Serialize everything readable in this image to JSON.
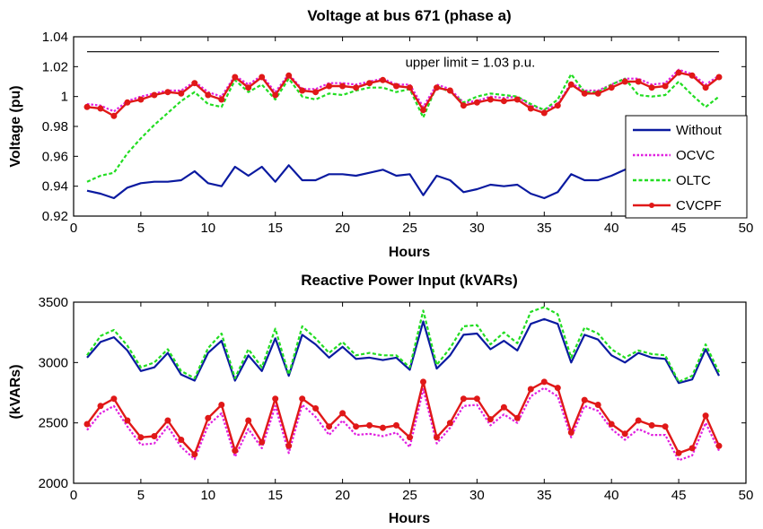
{
  "chart_data": [
    {
      "type": "line",
      "title": "Voltage at bus 671 (phase a)",
      "xlabel": "Hours",
      "ylabel": "Voltage (pu)",
      "xlim": [
        0,
        50
      ],
      "ylim": [
        0.92,
        1.04
      ],
      "xticks": [
        "0",
        "5",
        "10",
        "15",
        "20",
        "25",
        "30",
        "35",
        "40",
        "45",
        "50"
      ],
      "yticks": [
        "0.92",
        "0.94",
        "0.96",
        "0.98",
        "1",
        "1.02",
        "1.04"
      ],
      "grid": false,
      "legend": "bottom-right",
      "x": [
        1,
        2,
        3,
        4,
        5,
        6,
        7,
        8,
        9,
        10,
        11,
        12,
        13,
        14,
        15,
        16,
        17,
        18,
        19,
        20,
        21,
        22,
        23,
        24,
        25,
        26,
        27,
        28,
        29,
        30,
        31,
        32,
        33,
        34,
        35,
        36,
        37,
        38,
        39,
        40,
        41,
        42,
        43,
        44,
        45,
        46,
        47,
        48
      ],
      "series": [
        {
          "name": "Without",
          "color": "#0a1aa0",
          "style": "solid",
          "values": [
            0.937,
            0.935,
            0.932,
            0.939,
            0.942,
            0.943,
            0.943,
            0.944,
            0.95,
            0.942,
            0.94,
            0.953,
            0.947,
            0.953,
            0.943,
            0.954,
            0.944,
            0.944,
            0.948,
            0.948,
            0.947,
            0.949,
            0.951,
            0.947,
            0.948,
            0.934,
            0.947,
            0.944,
            0.936,
            0.938,
            0.941,
            0.94,
            0.941,
            0.935,
            0.932,
            0.936,
            0.948,
            0.944,
            0.944,
            0.947,
            0.951,
            0.953,
            0.953,
            0.954,
            0.958,
            0.958,
            0.956,
            0.96
          ]
        },
        {
          "name": "OCVC",
          "color": "#e020e0",
          "style": "dotted",
          "values": [
            0.995,
            0.994,
            0.99,
            0.997,
            1.0,
            1.002,
            1.004,
            1.004,
            1.01,
            1.003,
            1.0,
            1.014,
            1.008,
            1.014,
            1.003,
            1.015,
            1.005,
            1.005,
            1.009,
            1.009,
            1.008,
            1.01,
            1.012,
            1.008,
            1.008,
            0.993,
            1.008,
            1.005,
            0.996,
            0.997,
            1.0,
            0.999,
            1.0,
            0.994,
            0.991,
            0.995,
            1.009,
            1.004,
            1.004,
            1.008,
            1.012,
            1.012,
            1.008,
            1.009,
            1.018,
            1.015,
            1.008,
            1.014
          ]
        },
        {
          "name": "OLTC",
          "color": "#22dd22",
          "style": "dashed",
          "values": [
            0.943,
            0.947,
            0.949,
            0.962,
            0.972,
            0.981,
            0.989,
            0.997,
            1.003,
            0.995,
            0.993,
            1.011,
            1.003,
            1.008,
            0.998,
            1.012,
            1.0,
            0.998,
            1.002,
            1.001,
            1.004,
            1.006,
            1.006,
            1.003,
            1.005,
            0.986,
            1.007,
            1.003,
            0.996,
            1.0,
            1.002,
            1.001,
            1.0,
            0.995,
            0.991,
            0.998,
            1.015,
            1.003,
            1.003,
            1.008,
            1.012,
            1.001,
            1.0,
            1.001,
            1.01,
            1.001,
            0.993,
            1.0
          ]
        },
        {
          "name": "CVCPF",
          "color": "#e01818",
          "style": "solid-marker",
          "values": [
            0.993,
            0.992,
            0.987,
            0.996,
            0.998,
            1.001,
            1.003,
            1.002,
            1.009,
            1.001,
            0.998,
            1.013,
            1.006,
            1.013,
            1.001,
            1.014,
            1.004,
            1.003,
            1.007,
            1.007,
            1.006,
            1.009,
            1.011,
            1.007,
            1.006,
            0.991,
            1.006,
            1.004,
            0.994,
            0.996,
            0.998,
            0.997,
            0.998,
            0.992,
            0.989,
            0.994,
            1.008,
            1.002,
            1.002,
            1.006,
            1.01,
            1.01,
            1.006,
            1.007,
            1.016,
            1.014,
            1.006,
            1.013
          ]
        }
      ],
      "annotation": {
        "text": "upper limit = 1.03 p.u.",
        "y": 1.03,
        "x_start": 1,
        "x_end": 48
      }
    },
    {
      "type": "line",
      "title": "Reactive Power Input (kVARs)",
      "xlabel": "Hours",
      "ylabel": "(kVARs)",
      "xlim": [
        0,
        50
      ],
      "ylim": [
        2000,
        3500
      ],
      "xticks": [
        "0",
        "5",
        "10",
        "15",
        "20",
        "25",
        "30",
        "35",
        "40",
        "45",
        "50"
      ],
      "yticks": [
        "2000",
        "2500",
        "3000",
        "3500"
      ],
      "grid": false,
      "x": [
        1,
        2,
        3,
        4,
        5,
        6,
        7,
        8,
        9,
        10,
        11,
        12,
        13,
        14,
        15,
        16,
        17,
        18,
        19,
        20,
        21,
        22,
        23,
        24,
        25,
        26,
        27,
        28,
        29,
        30,
        31,
        32,
        33,
        34,
        35,
        36,
        37,
        38,
        39,
        40,
        41,
        42,
        43,
        44,
        45,
        46,
        47,
        48
      ],
      "series": [
        {
          "name": "Without",
          "color": "#0a1aa0",
          "style": "solid",
          "values": [
            3040,
            3170,
            3210,
            3100,
            2930,
            2960,
            3080,
            2900,
            2850,
            3080,
            3180,
            2850,
            3060,
            2930,
            3200,
            2890,
            3230,
            3150,
            3040,
            3130,
            3030,
            3040,
            3020,
            3040,
            2940,
            3340,
            2950,
            3060,
            3230,
            3240,
            3110,
            3180,
            3100,
            3320,
            3360,
            3320,
            3000,
            3230,
            3190,
            3060,
            3000,
            3080,
            3040,
            3030,
            2830,
            2860,
            3110,
            2890
          ]
        },
        {
          "name": "OLTC",
          "color": "#22dd22",
          "style": "dashed",
          "values": [
            3060,
            3220,
            3270,
            3140,
            2960,
            3000,
            3110,
            2930,
            2870,
            3120,
            3240,
            2870,
            3110,
            2960,
            3280,
            2900,
            3300,
            3200,
            3080,
            3170,
            3060,
            3080,
            3060,
            3060,
            2960,
            3430,
            2980,
            3120,
            3300,
            3310,
            3150,
            3250,
            3160,
            3420,
            3460,
            3400,
            3040,
            3290,
            3240,
            3110,
            3040,
            3100,
            3070,
            3060,
            2840,
            2890,
            3150,
            2920
          ]
        },
        {
          "name": "OCVC",
          "color": "#e020e0",
          "style": "dotted",
          "values": [
            2440,
            2580,
            2640,
            2470,
            2320,
            2330,
            2470,
            2300,
            2200,
            2480,
            2580,
            2220,
            2450,
            2290,
            2640,
            2250,
            2650,
            2550,
            2400,
            2520,
            2400,
            2410,
            2390,
            2420,
            2300,
            2780,
            2330,
            2460,
            2640,
            2650,
            2480,
            2570,
            2500,
            2720,
            2790,
            2720,
            2380,
            2640,
            2600,
            2450,
            2360,
            2450,
            2400,
            2400,
            2190,
            2230,
            2500,
            2270
          ]
        },
        {
          "name": "CVCPF",
          "color": "#e01818",
          "style": "solid-marker",
          "values": [
            2490,
            2640,
            2700,
            2520,
            2380,
            2390,
            2520,
            2360,
            2240,
            2540,
            2650,
            2270,
            2520,
            2340,
            2700,
            2310,
            2700,
            2620,
            2470,
            2580,
            2470,
            2480,
            2460,
            2480,
            2380,
            2840,
            2380,
            2500,
            2700,
            2700,
            2530,
            2630,
            2540,
            2780,
            2840,
            2790,
            2420,
            2690,
            2650,
            2490,
            2410,
            2520,
            2480,
            2470,
            2250,
            2290,
            2560,
            2310
          ]
        }
      ]
    }
  ]
}
